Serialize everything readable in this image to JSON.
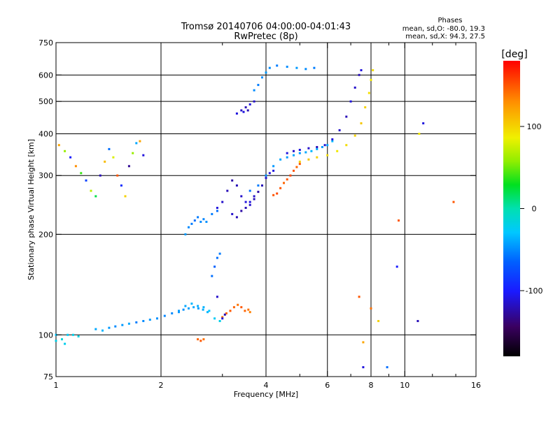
{
  "title": "Tromsø 20140706 04:00:00-04:01:43",
  "subtitle": "RwPretec (8p)",
  "phases_info": {
    "heading": "Phases",
    "line1": "mean, sd,O: -80.0, 19.3",
    "line2": "mean, sd,X:  94.3, 27.5"
  },
  "colorbar": {
    "unit_label": "[deg]",
    "ticks": [
      {
        "value": 100,
        "label": "100"
      },
      {
        "value": 0,
        "label": "0"
      },
      {
        "value": -100,
        "label": "-100"
      }
    ],
    "range": [
      -180,
      180
    ]
  },
  "chart_data": {
    "type": "scatter",
    "xlabel": "Frequency [MHz]",
    "ylabel": "Stationary phase Virtual Height [km]",
    "xscale": "log",
    "yscale": "log",
    "xlim": [
      1,
      16
    ],
    "ylim": [
      75,
      750
    ],
    "x_ticks": [
      {
        "value": 1,
        "label": "1"
      },
      {
        "value": 2,
        "label": "2"
      },
      {
        "value": 4,
        "label": "4"
      },
      {
        "value": 6,
        "label": "6"
      },
      {
        "value": 8,
        "label": "8"
      },
      {
        "value": 10,
        "label": "10"
      },
      {
        "value": 16,
        "label": "16"
      }
    ],
    "x_minor": [
      3,
      5,
      7,
      9,
      12,
      14
    ],
    "y_ticks": [
      {
        "value": 75,
        "label": "75"
      },
      {
        "value": 100,
        "label": "100"
      },
      {
        "value": 200,
        "label": "200"
      },
      {
        "value": 300,
        "label": "300"
      },
      {
        "value": 400,
        "label": "400"
      },
      {
        "value": 500,
        "label": "500"
      },
      {
        "value": 600,
        "label": "600"
      },
      {
        "value": 750,
        "label": "750"
      }
    ],
    "grid": true,
    "color_by": "phase [deg]",
    "series": [
      {
        "points": [
          [
            1.0,
            96,
            -20
          ],
          [
            1.04,
            97,
            -15
          ],
          [
            1.08,
            100,
            -25
          ],
          [
            1.12,
            100,
            -20
          ],
          [
            1.16,
            99,
            -18
          ],
          [
            1.0,
            100,
            -30
          ],
          [
            1.06,
            94,
            -22
          ]
        ]
      },
      {
        "points": [
          [
            1.3,
            104,
            -40
          ],
          [
            1.36,
            103,
            -35
          ],
          [
            1.42,
            105,
            -45
          ],
          [
            1.48,
            106,
            -50
          ],
          [
            1.55,
            107,
            -45
          ],
          [
            1.62,
            108,
            -40
          ],
          [
            1.7,
            109,
            -55
          ],
          [
            1.78,
            110,
            -50
          ],
          [
            1.86,
            111,
            -45
          ],
          [
            1.95,
            112,
            -48
          ],
          [
            2.05,
            114,
            -52
          ],
          [
            2.15,
            116,
            -50
          ],
          [
            2.25,
            118,
            -45
          ],
          [
            2.35,
            122,
            -40
          ],
          [
            2.45,
            124,
            -35
          ],
          [
            2.55,
            122,
            -38
          ],
          [
            2.65,
            121,
            -36
          ],
          [
            2.75,
            118,
            -30
          ],
          [
            2.85,
            112,
            -25
          ],
          [
            2.95,
            110,
            -20
          ]
        ]
      },
      {
        "points": [
          [
            2.25,
            117,
            -45
          ],
          [
            2.32,
            119,
            -48
          ],
          [
            2.4,
            120,
            -42
          ],
          [
            2.48,
            121,
            -40
          ],
          [
            2.56,
            120,
            -44
          ],
          [
            2.64,
            119,
            -38
          ],
          [
            2.72,
            117,
            -35
          ]
        ]
      },
      {
        "points": [
          [
            3.0,
            113,
            140
          ],
          [
            3.08,
            116,
            145
          ],
          [
            3.16,
            118,
            150
          ],
          [
            3.24,
            121,
            145
          ],
          [
            3.32,
            123,
            140
          ],
          [
            3.4,
            121,
            150
          ],
          [
            3.48,
            118,
            145
          ],
          [
            3.56,
            119,
            140
          ],
          [
            3.6,
            117,
            135
          ]
        ]
      },
      {
        "points": [
          [
            2.55,
            97,
            145
          ],
          [
            2.6,
            96,
            150
          ],
          [
            2.65,
            97,
            140
          ]
        ]
      },
      {
        "points": [
          [
            3.0,
            112,
            -110
          ],
          [
            3.05,
            115,
            -120
          ],
          [
            2.9,
            130,
            -115
          ]
        ]
      },
      {
        "points": [
          [
            2.8,
            150,
            -60
          ],
          [
            2.85,
            160,
            -65
          ],
          [
            2.9,
            170,
            -60
          ],
          [
            2.95,
            175,
            -55
          ]
        ]
      },
      {
        "points": [
          [
            2.35,
            200,
            -45
          ],
          [
            2.4,
            210,
            -50
          ],
          [
            2.45,
            215,
            -55
          ],
          [
            2.5,
            220,
            -60
          ],
          [
            2.55,
            225,
            -55
          ],
          [
            2.6,
            218,
            -50
          ],
          [
            2.65,
            222,
            -52
          ],
          [
            2.7,
            218,
            -48
          ],
          [
            2.8,
            230,
            -55
          ],
          [
            2.9,
            235,
            -60
          ]
        ]
      },
      {
        "points": [
          [
            2.9,
            240,
            -110
          ],
          [
            3.0,
            250,
            -115
          ],
          [
            3.1,
            270,
            -120
          ],
          [
            3.2,
            290,
            -125
          ],
          [
            3.3,
            280,
            -120
          ],
          [
            3.4,
            260,
            -115
          ],
          [
            3.5,
            250,
            -110
          ],
          [
            3.6,
            245,
            -115
          ],
          [
            3.7,
            255,
            -120
          ],
          [
            3.8,
            268,
            -125
          ],
          [
            3.9,
            280,
            -120
          ],
          [
            4.0,
            295,
            -115
          ],
          [
            4.1,
            305,
            -110
          ],
          [
            4.2,
            310,
            -110
          ],
          [
            3.2,
            230,
            -115
          ],
          [
            3.3,
            225,
            -120
          ],
          [
            3.4,
            235,
            -125
          ],
          [
            3.5,
            240,
            -120
          ],
          [
            3.6,
            250,
            -110
          ],
          [
            3.7,
            260,
            -115
          ]
        ]
      },
      {
        "points": [
          [
            3.6,
            270,
            -60
          ],
          [
            3.8,
            280,
            -55
          ],
          [
            4.0,
            300,
            -50
          ],
          [
            4.2,
            320,
            -45
          ],
          [
            4.4,
            335,
            -40
          ],
          [
            4.6,
            340,
            -45
          ],
          [
            4.8,
            345,
            -40
          ],
          [
            5.0,
            350,
            -45
          ],
          [
            5.2,
            352,
            -40
          ],
          [
            5.4,
            355,
            -35
          ],
          [
            5.6,
            360,
            -40
          ],
          [
            5.8,
            365,
            -45
          ],
          [
            6.0,
            370,
            -40
          ],
          [
            6.2,
            380,
            -35
          ]
        ]
      },
      {
        "points": [
          [
            4.6,
            350,
            -110
          ],
          [
            4.8,
            355,
            -115
          ],
          [
            5.0,
            358,
            -110
          ],
          [
            5.3,
            362,
            -115
          ],
          [
            5.6,
            365,
            -120
          ],
          [
            5.9,
            370,
            -115
          ],
          [
            6.2,
            385,
            -110
          ],
          [
            6.5,
            410,
            -115
          ],
          [
            6.8,
            450,
            -120
          ],
          [
            7.0,
            500,
            -110
          ],
          [
            7.2,
            550,
            -115
          ],
          [
            7.4,
            600,
            -120
          ],
          [
            7.5,
            620,
            -110
          ]
        ]
      },
      {
        "points": [
          [
            4.2,
            262,
            150
          ],
          [
            4.3,
            265,
            155
          ],
          [
            4.4,
            275,
            150
          ],
          [
            4.5,
            285,
            145
          ],
          [
            4.6,
            292,
            150
          ],
          [
            4.7,
            300,
            155
          ],
          [
            4.8,
            310,
            150
          ],
          [
            4.9,
            318,
            145
          ],
          [
            5.0,
            325,
            150
          ]
        ]
      },
      {
        "points": [
          [
            5.0,
            330,
            100
          ],
          [
            5.3,
            335,
            105
          ],
          [
            5.6,
            340,
            100
          ],
          [
            6.0,
            345,
            95
          ],
          [
            6.4,
            355,
            90
          ],
          [
            6.8,
            370,
            95
          ],
          [
            7.2,
            395,
            100
          ],
          [
            7.5,
            430,
            105
          ],
          [
            7.7,
            480,
            100
          ],
          [
            7.9,
            530,
            95
          ],
          [
            8.0,
            580,
            90
          ],
          [
            8.1,
            620,
            95
          ]
        ]
      },
      {
        "points": [
          [
            3.3,
            460,
            -110
          ],
          [
            3.4,
            470,
            -115
          ],
          [
            3.5,
            480,
            -120
          ],
          [
            3.6,
            490,
            -110
          ],
          [
            3.7,
            500,
            -115
          ],
          [
            3.55,
            470,
            -120
          ],
          [
            3.45,
            465,
            -110
          ]
        ]
      },
      {
        "points": [
          [
            3.7,
            540,
            -50
          ],
          [
            3.8,
            560,
            -55
          ],
          [
            3.9,
            590,
            -50
          ],
          [
            4.0,
            610,
            -45
          ],
          [
            4.1,
            630,
            -50
          ],
          [
            4.3,
            640,
            -55
          ],
          [
            4.6,
            635,
            -50
          ],
          [
            4.9,
            630,
            -45
          ],
          [
            5.2,
            625,
            -50
          ],
          [
            5.5,
            630,
            -55
          ]
        ]
      },
      {
        "points": [
          [
            1.02,
            370,
            120
          ],
          [
            1.06,
            355,
            60
          ],
          [
            1.1,
            340,
            -100
          ],
          [
            1.14,
            320,
            130
          ],
          [
            1.18,
            305,
            40
          ],
          [
            1.22,
            290,
            -80
          ],
          [
            1.26,
            270,
            70
          ],
          [
            1.3,
            260,
            20
          ],
          [
            1.34,
            300,
            -120
          ],
          [
            1.38,
            330,
            110
          ],
          [
            1.42,
            360,
            -60
          ],
          [
            1.46,
            340,
            80
          ],
          [
            1.5,
            300,
            150
          ],
          [
            1.54,
            280,
            -90
          ],
          [
            1.58,
            260,
            100
          ],
          [
            1.62,
            320,
            -130
          ],
          [
            1.66,
            350,
            60
          ],
          [
            1.7,
            375,
            -40
          ],
          [
            1.74,
            380,
            120
          ],
          [
            1.78,
            345,
            -110
          ]
        ]
      },
      {
        "points": [
          [
            7.4,
            130,
            150
          ],
          [
            7.6,
            95,
            120
          ],
          [
            7.6,
            80,
            -110
          ],
          [
            8.0,
            120,
            140
          ],
          [
            8.4,
            110,
            100
          ],
          [
            8.9,
            80,
            -60
          ],
          [
            9.5,
            160,
            -100
          ],
          [
            9.6,
            220,
            150
          ],
          [
            11.0,
            400,
            90
          ],
          [
            11.3,
            430,
            -110
          ],
          [
            13.8,
            250,
            150
          ],
          [
            10.9,
            110,
            -120
          ]
        ]
      }
    ]
  }
}
